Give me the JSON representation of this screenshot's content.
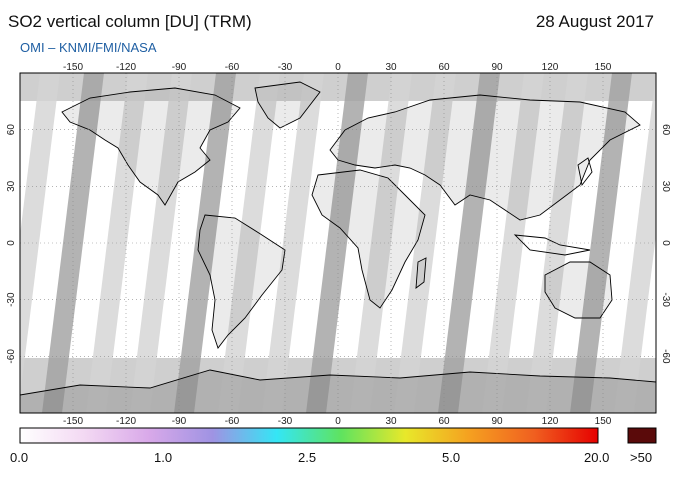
{
  "header": {
    "title": "SO2 vertical column [DU] (TRM)",
    "date": "28 August 2017",
    "credit": "OMI  –  KNMI/FMI/NASA"
  },
  "map": {
    "lon_ticks": [
      "-150",
      "-120",
      "-90",
      "-60",
      "-30",
      "0",
      "30",
      "60",
      "90",
      "120",
      "150"
    ],
    "lat_ticks": [
      "60",
      "30",
      "0",
      "-30",
      "-60"
    ],
    "colors": {
      "ocean": "#ffffff",
      "land_stroke": "#000000",
      "swath_light": "#d3d3d3",
      "swath_dark": "#a0a0a0",
      "polar": "#c8c8c8"
    }
  },
  "colorbar": {
    "labels": [
      "0.0",
      "1.0",
      "2.5",
      "5.0",
      "20.0"
    ],
    "overflow_label": ">50",
    "overflow_color": "#5a0a0a",
    "stops": [
      "#ffffff",
      "#f3d9f3",
      "#d9a9e9",
      "#9f93e3",
      "#34e6f5",
      "#5fe35f",
      "#e8e82a",
      "#f5a020",
      "#f06020",
      "#e60000"
    ]
  }
}
